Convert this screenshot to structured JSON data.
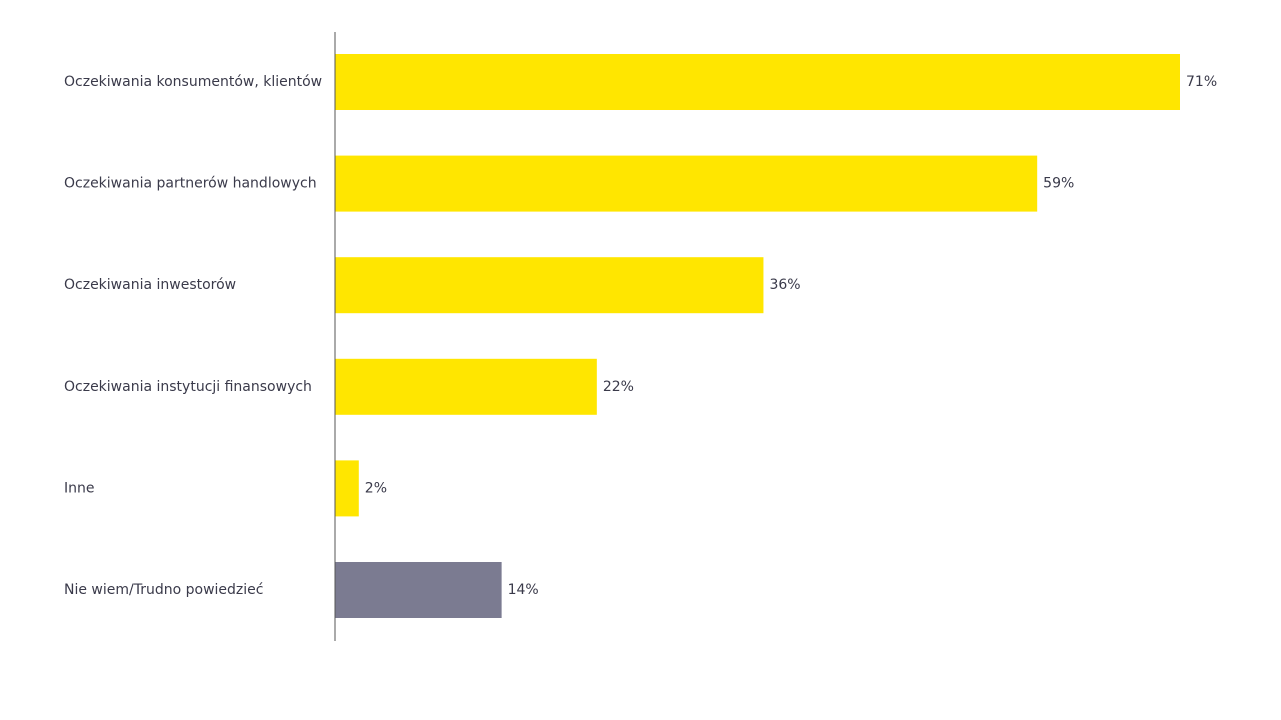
{
  "chart_data": {
    "type": "bar",
    "orientation": "horizontal",
    "categories": [
      "Oczekiwania konsumentów, klientów",
      "Oczekiwania partnerów handlowych",
      "Oczekiwania inwestorów",
      "Oczekiwania instytucji finansowych",
      "Inne",
      "Nie wiem/Trudno powiedzieć"
    ],
    "values": [
      71,
      59,
      36,
      22,
      2,
      14
    ],
    "value_labels": [
      "71%",
      "59%",
      "36%",
      "22%",
      "2%",
      "14%"
    ],
    "bar_colors": [
      "#FFE600",
      "#FFE600",
      "#FFE600",
      "#FFE600",
      "#FFE600",
      "#7B7B91"
    ],
    "xlim": [
      0,
      71
    ],
    "grid": false,
    "legend": "none"
  },
  "colors": {
    "accent": "#FFE600",
    "neutral": "#7B7B91",
    "axis": "#555555",
    "text": "#3a3a4a"
  }
}
